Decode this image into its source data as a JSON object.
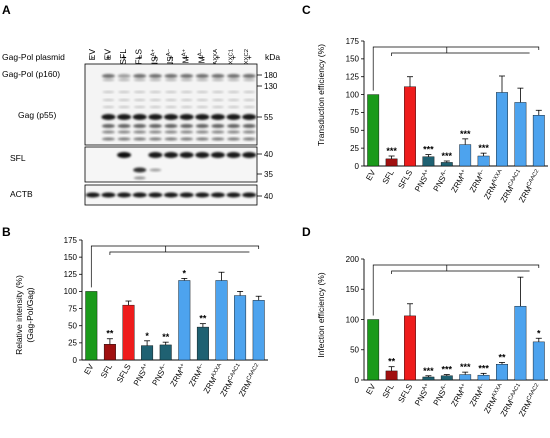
{
  "panel_a": {
    "label": "A",
    "plasmid_label": "Gag-Pol plasmid",
    "kda_label": "kDa",
    "lanes": [
      {
        "label": "EV",
        "sign": "-"
      },
      {
        "label": "EV",
        "sign": "+"
      },
      {
        "label": "SFL",
        "sign": "+"
      },
      {
        "label": "SFLS",
        "sign": "+"
      },
      {
        "label": "PNSA+",
        "sign": "+"
      },
      {
        "label": "PNSA–",
        "sign": "+"
      },
      {
        "label": "ZRMA+",
        "sign": "+"
      },
      {
        "label": "ZRMA–",
        "sign": "+"
      },
      {
        "label": "ZRMAXXA",
        "sign": "+"
      },
      {
        "label": "ZRMCXXC1",
        "sign": "+"
      },
      {
        "label": "ZRMCXXC2",
        "sign": "+"
      }
    ],
    "rows": [
      {
        "label": "Gag-Pol (p160)"
      },
      {
        "label": "Gag (p55)"
      },
      {
        "label": "SFL"
      },
      {
        "label": "ACTB"
      }
    ],
    "markers": [
      "180",
      "130",
      "55",
      "40",
      "40",
      "35",
      "40"
    ]
  },
  "chart_data": [
    {
      "panel": "B",
      "type": "bar",
      "ylabel_line1": "Relative intensity (%)",
      "ylabel_line2": "(Gag-Pol/Gag)",
      "ylim": [
        0,
        175
      ],
      "yticks": [
        "0",
        "25",
        "50",
        "75",
        "100",
        "125",
        "150",
        "175"
      ],
      "categories": [
        "EV",
        "SFL",
        "SFLS",
        "PNSA+",
        "PNSA–",
        "ZRMA+",
        "ZRMA–",
        "ZRMAXXA",
        "ZRMCAAC1",
        "ZRMCAAC2"
      ],
      "values": [
        100,
        23,
        80,
        21,
        22,
        116,
        48,
        116,
        94,
        87
      ],
      "errors": [
        0,
        8,
        6,
        7,
        4,
        3,
        5,
        12,
        6,
        6
      ],
      "significance": [
        "",
        "**",
        "",
        "*",
        "**",
        "*",
        "**",
        "",
        "",
        ""
      ],
      "colors": [
        "#1a9a1a",
        "#a01010",
        "#ee1c1c",
        "#1f6172",
        "#1f6172",
        "#4da3ee",
        "#1f6172",
        "#4da3ee",
        "#4da3ee",
        "#4da3ee"
      ]
    },
    {
      "panel": "C",
      "type": "bar",
      "ylabel_line1": "Transduction efficiency (%)",
      "ylim": [
        0,
        175
      ],
      "yticks": [
        "0",
        "25",
        "50",
        "75",
        "100",
        "125",
        "150",
        "175"
      ],
      "categories": [
        "EV",
        "SFL",
        "SFLS",
        "PNSA+",
        "PNSA–",
        "ZRMA+",
        "ZRMA–",
        "ZRMAXXA",
        "ZRMCAAC1",
        "ZRMCAAC2"
      ],
      "values": [
        100,
        10,
        111,
        13,
        5,
        30,
        14,
        103,
        89,
        71
      ],
      "errors": [
        0,
        4,
        14,
        3,
        2,
        8,
        4,
        23,
        20,
        7
      ],
      "significance": [
        "",
        "***",
        "",
        "***",
        "***",
        "***",
        "***",
        "",
        "",
        ""
      ],
      "colors": [
        "#1a9a1a",
        "#a01010",
        "#ee1c1c",
        "#1f6172",
        "#1f6172",
        "#4da3ee",
        "#4da3ee",
        "#4da3ee",
        "#4da3ee",
        "#4da3ee"
      ]
    },
    {
      "panel": "D",
      "type": "bar",
      "ylabel_line1": "Infection efficiency (%)",
      "ylim": [
        0,
        200
      ],
      "yticks": [
        "0",
        "50",
        "100",
        "150",
        "200"
      ],
      "categories": [
        "EV",
        "SFL",
        "SFLS",
        "PNSA+",
        "PNSA–",
        "ZRMA+",
        "ZRMA–",
        "ZRMAXXA",
        "ZRMCAAC1",
        "ZRMCAAC2"
      ],
      "values": [
        100,
        15,
        106,
        5,
        7,
        9,
        8,
        26,
        122,
        63
      ],
      "errors": [
        0,
        7,
        20,
        2,
        2,
        4,
        3,
        3,
        48,
        6
      ],
      "significance": [
        "",
        "**",
        "",
        "***",
        "***",
        "***",
        "***",
        "**",
        "",
        "*"
      ],
      "colors": [
        "#1a9a1a",
        "#a01010",
        "#ee1c1c",
        "#1f6172",
        "#1f6172",
        "#4da3ee",
        "#4da3ee",
        "#4da3ee",
        "#4da3ee",
        "#4da3ee"
      ]
    }
  ]
}
